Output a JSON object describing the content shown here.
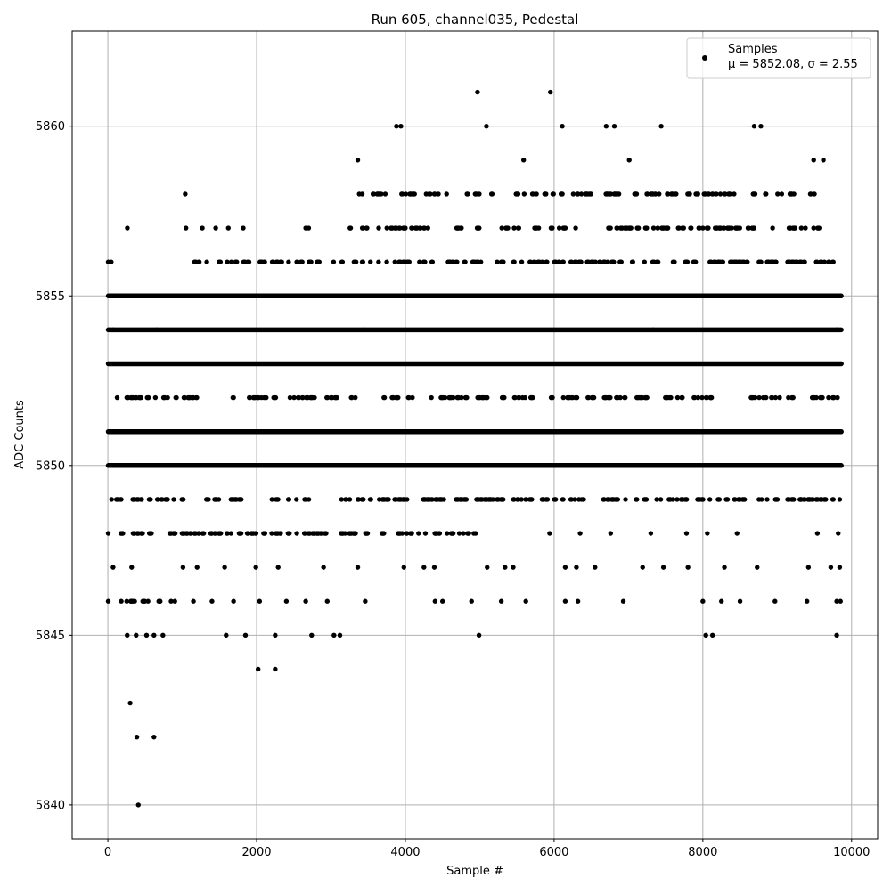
{
  "chart_data": {
    "type": "scatter",
    "title": "Run 605, channel035, Pedestal",
    "xlabel": "Sample #",
    "ylabel": "ADC Counts",
    "xlim": [
      -480,
      10350
    ],
    "ylim": [
      5839,
      5862.8
    ],
    "xticks": [
      0,
      2000,
      4000,
      6000,
      8000,
      10000
    ],
    "yticks": [
      5840,
      5845,
      5850,
      5855,
      5860
    ],
    "grid": true,
    "legend_position": "top-right",
    "marker_color": "#000000",
    "grid_color": "#b0b0b0",
    "legend": {
      "label": "Samples",
      "stats": "μ = 5852.08, σ = 2.55"
    },
    "series": [
      {
        "name": "Samples",
        "points": [
          [
            5,
            5856
          ],
          [
            45,
            5856
          ],
          [
            262,
            5857
          ],
          [
            1040,
            5858
          ],
          [
            1050,
            5857
          ],
          [
            1270,
            5857
          ],
          [
            1450,
            5857
          ],
          [
            1620,
            5857
          ],
          [
            1820,
            5857
          ],
          [
            2660,
            5857
          ],
          [
            2700,
            5857
          ],
          [
            3360,
            5859
          ],
          [
            3380,
            5858
          ],
          [
            3420,
            5858
          ],
          [
            3880,
            5860
          ],
          [
            3940,
            5860
          ],
          [
            4280,
            5858
          ],
          [
            4320,
            5858
          ],
          [
            4970,
            5861
          ],
          [
            5090,
            5860
          ],
          [
            5590,
            5859
          ],
          [
            5950,
            5861
          ],
          [
            6110,
            5860
          ],
          [
            6700,
            5860
          ],
          [
            6810,
            5860
          ],
          [
            7010,
            5859
          ],
          [
            7440,
            5860
          ],
          [
            8420,
            5858
          ],
          [
            8690,
            5860
          ],
          [
            8780,
            5860
          ],
          [
            9490,
            5859
          ],
          [
            9620,
            5859
          ],
          [
            5,
            5855
          ],
          [
            300,
            5855
          ],
          [
            355,
            5855
          ],
          [
            435,
            5855
          ],
          [
            2480,
            5855
          ],
          [
            5620,
            5855
          ],
          [
            8560,
            5855
          ],
          [
            9840,
            5855
          ],
          [
            5,
            5854
          ],
          [
            70,
            5854
          ],
          [
            655,
            5854
          ],
          [
            3440,
            5854
          ],
          [
            7330,
            5854
          ],
          [
            9800,
            5854
          ],
          [
            5,
            5853
          ],
          [
            9860,
            5853
          ],
          [
            125,
            5852
          ],
          [
            1030,
            5852
          ],
          [
            2100,
            5852
          ],
          [
            2750,
            5852
          ],
          [
            4350,
            5852
          ],
          [
            5610,
            5852
          ],
          [
            6250,
            5852
          ],
          [
            6890,
            5852
          ],
          [
            7150,
            5852
          ],
          [
            7570,
            5852
          ],
          [
            8110,
            5852
          ],
          [
            8850,
            5852
          ],
          [
            9150,
            5852
          ],
          [
            9810,
            5852
          ],
          [
            5,
            5851
          ],
          [
            9860,
            5851
          ],
          [
            5,
            5850
          ],
          [
            9860,
            5850
          ],
          [
            50,
            5849
          ],
          [
            1700,
            5849
          ],
          [
            3650,
            5849
          ],
          [
            5560,
            5849
          ],
          [
            6370,
            5849
          ],
          [
            6960,
            5849
          ],
          [
            7380,
            5849
          ],
          [
            7950,
            5849
          ],
          [
            8790,
            5849
          ],
          [
            9320,
            5849
          ],
          [
            9840,
            5849
          ],
          [
            5,
            5848
          ],
          [
            880,
            5848
          ],
          [
            2540,
            5848
          ],
          [
            3330,
            5848
          ],
          [
            4270,
            5848
          ],
          [
            4920,
            5848
          ],
          [
            5940,
            5848
          ],
          [
            6350,
            5848
          ],
          [
            6760,
            5848
          ],
          [
            7300,
            5848
          ],
          [
            7780,
            5848
          ],
          [
            8060,
            5848
          ],
          [
            8460,
            5848
          ],
          [
            9540,
            5848
          ],
          [
            9820,
            5848
          ],
          [
            70,
            5847
          ],
          [
            320,
            5847
          ],
          [
            1010,
            5847
          ],
          [
            1200,
            5847
          ],
          [
            1570,
            5847
          ],
          [
            1990,
            5847
          ],
          [
            2290,
            5847
          ],
          [
            2900,
            5847
          ],
          [
            3360,
            5847
          ],
          [
            3980,
            5847
          ],
          [
            4250,
            5847
          ],
          [
            4390,
            5847
          ],
          [
            5100,
            5847
          ],
          [
            5340,
            5847
          ],
          [
            5450,
            5847
          ],
          [
            6150,
            5847
          ],
          [
            6300,
            5847
          ],
          [
            6550,
            5847
          ],
          [
            7190,
            5847
          ],
          [
            7470,
            5847
          ],
          [
            7800,
            5847
          ],
          [
            8290,
            5847
          ],
          [
            8730,
            5847
          ],
          [
            9420,
            5847
          ],
          [
            9720,
            5847
          ],
          [
            9840,
            5847
          ],
          [
            5,
            5846
          ],
          [
            180,
            5846
          ],
          [
            360,
            5846
          ],
          [
            540,
            5846
          ],
          [
            700,
            5846
          ],
          [
            850,
            5846
          ],
          [
            1150,
            5846
          ],
          [
            1400,
            5846
          ],
          [
            1690,
            5846
          ],
          [
            2040,
            5846
          ],
          [
            2400,
            5846
          ],
          [
            2660,
            5846
          ],
          [
            2950,
            5846
          ],
          [
            3460,
            5846
          ],
          [
            4400,
            5846
          ],
          [
            4500,
            5846
          ],
          [
            4890,
            5846
          ],
          [
            5290,
            5846
          ],
          [
            5620,
            5846
          ],
          [
            6150,
            5846
          ],
          [
            6320,
            5846
          ],
          [
            6930,
            5846
          ],
          [
            8000,
            5846
          ],
          [
            8250,
            5846
          ],
          [
            8500,
            5846
          ],
          [
            8970,
            5846
          ],
          [
            9400,
            5846
          ],
          [
            9800,
            5846
          ],
          [
            9850,
            5846
          ],
          [
            260,
            5845
          ],
          [
            380,
            5845
          ],
          [
            520,
            5845
          ],
          [
            620,
            5845
          ],
          [
            740,
            5845
          ],
          [
            1590,
            5845
          ],
          [
            1850,
            5845
          ],
          [
            2250,
            5845
          ],
          [
            2740,
            5845
          ],
          [
            3040,
            5845
          ],
          [
            3120,
            5845
          ],
          [
            4990,
            5845
          ],
          [
            8040,
            5845
          ],
          [
            8130,
            5845
          ],
          [
            9800,
            5845
          ],
          [
            2020,
            5844
          ],
          [
            2250,
            5844
          ],
          [
            300,
            5843
          ],
          [
            390,
            5842
          ],
          [
            620,
            5842
          ],
          [
            410,
            5840
          ]
        ],
        "dense_bands": [
          {
            "y": 5855,
            "x_start": 10,
            "x_end": 9860
          },
          {
            "y": 5854,
            "x_start": 10,
            "x_end": 9860
          },
          {
            "y": 5853,
            "x_start": 10,
            "x_end": 9860
          },
          {
            "y": 5851,
            "x_start": 10,
            "x_end": 9860
          },
          {
            "y": 5850,
            "x_start": 10,
            "x_end": 9860
          }
        ],
        "sparse_bands": [
          {
            "y": 5857,
            "x_start": 3200,
            "x_end": 9600
          },
          {
            "y": 5856,
            "x_start": 1000,
            "x_end": 9800
          },
          {
            "y": 5852,
            "x_start": 200,
            "x_end": 9800
          },
          {
            "y": 5849,
            "x_start": 60,
            "x_end": 9800
          },
          {
            "y": 5848,
            "x_start": 10,
            "x_end": 5000
          },
          {
            "y": 5846,
            "x_start": 200,
            "x_end": 900
          },
          {
            "y": 5858,
            "x_start": 3400,
            "x_end": 9500
          }
        ]
      }
    ]
  }
}
